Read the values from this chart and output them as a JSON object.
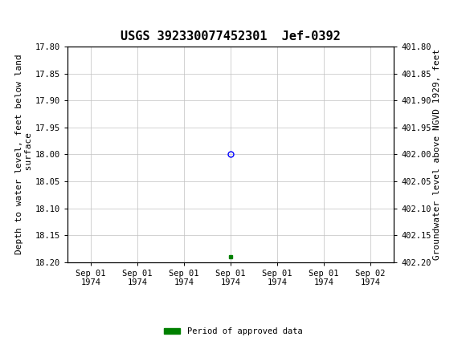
{
  "title": "USGS 392330077452301  Jef-0392",
  "xlabel_ticks": [
    "Sep 01\n1974",
    "Sep 01\n1974",
    "Sep 01\n1974",
    "Sep 01\n1974",
    "Sep 01\n1974",
    "Sep 01\n1974",
    "Sep 02\n1974"
  ],
  "ylabel_left": "Depth to water level, feet below land\n surface",
  "ylabel_right": "Groundwater level above NGVD 1929, feet",
  "ylim_left": [
    17.8,
    18.2
  ],
  "ylim_right": [
    402.2,
    401.8
  ],
  "yticks_left": [
    17.8,
    17.85,
    17.9,
    17.95,
    18.0,
    18.05,
    18.1,
    18.15,
    18.2
  ],
  "yticks_right": [
    402.2,
    402.15,
    402.1,
    402.05,
    402.0,
    401.95,
    401.9,
    401.85,
    401.8
  ],
  "data_point_x": 12,
  "data_point_y": 18.0,
  "data_point_color": "blue",
  "data_point_marker": "o",
  "data_point_marker_facecolor": "none",
  "green_square_x": 12,
  "green_square_y": 18.19,
  "green_color": "#008000",
  "header_bg_color": "#1a6b3c",
  "plot_bg_color": "#ffffff",
  "grid_color": "#c0c0c0",
  "border_color": "#000000",
  "font_family": "monospace",
  "title_fontsize": 11,
  "tick_fontsize": 7.5,
  "ylabel_fontsize": 8,
  "legend_label": "Period of approved data",
  "x_positions": [
    0,
    4,
    8,
    12,
    16,
    20,
    24
  ],
  "xlim": [
    -2,
    26
  ]
}
